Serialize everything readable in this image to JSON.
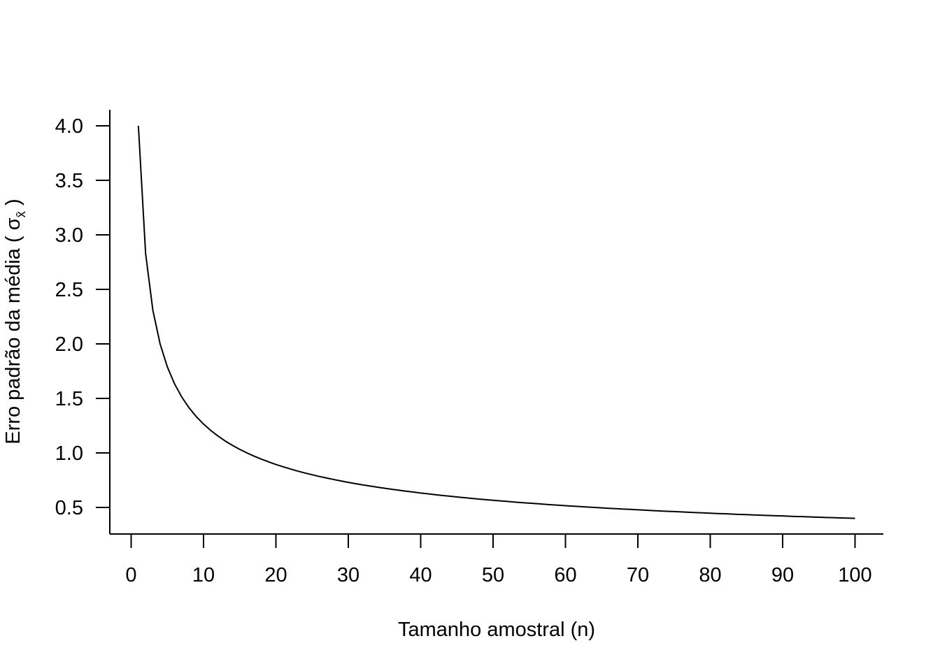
{
  "chart_data": {
    "type": "line",
    "title": "",
    "xlabel": "Tamanho amostral (n)",
    "ylabel": {
      "prefix": "Erro padrão da média ( σ",
      "subscript": "x̄",
      "suffix": " )"
    },
    "xlim": [
      1,
      100
    ],
    "ylim": [
      0.4,
      4.0
    ],
    "x_ticks": [
      0,
      10,
      20,
      30,
      40,
      50,
      60,
      70,
      80,
      90,
      100
    ],
    "x_tick_labels": [
      "0",
      "10",
      "20",
      "30",
      "40",
      "50",
      "60",
      "70",
      "80",
      "90",
      "100"
    ],
    "y_ticks": [
      0.5,
      1.0,
      1.5,
      2.0,
      2.5,
      3.0,
      3.5,
      4.0
    ],
    "y_tick_labels": [
      "0.5",
      "1.0",
      "1.5",
      "2.0",
      "2.5",
      "3.0",
      "3.5",
      "4.0"
    ],
    "grid": false,
    "legend": "none",
    "series": [
      {
        "color": "#000000",
        "x": [
          1,
          2,
          3,
          4,
          5,
          6,
          7,
          8,
          9,
          10,
          11,
          12,
          13,
          14,
          15,
          16,
          17,
          18,
          19,
          20,
          21,
          22,
          23,
          24,
          25,
          26,
          27,
          28,
          29,
          30,
          31,
          32,
          33,
          34,
          35,
          36,
          37,
          38,
          39,
          40,
          41,
          42,
          43,
          44,
          45,
          46,
          47,
          48,
          49,
          50,
          51,
          52,
          53,
          54,
          55,
          56,
          57,
          58,
          59,
          60,
          61,
          62,
          63,
          64,
          65,
          66,
          67,
          68,
          69,
          70,
          71,
          72,
          73,
          74,
          75,
          76,
          77,
          78,
          79,
          80,
          81,
          82,
          83,
          84,
          85,
          86,
          87,
          88,
          89,
          90,
          91,
          92,
          93,
          94,
          95,
          96,
          97,
          98,
          99,
          100
        ],
        "y": [
          4.0,
          2.828,
          2.309,
          2.0,
          1.789,
          1.633,
          1.512,
          1.414,
          1.333,
          1.265,
          1.206,
          1.155,
          1.109,
          1.069,
          1.033,
          1.0,
          0.97,
          0.943,
          0.918,
          0.894,
          0.873,
          0.853,
          0.834,
          0.816,
          0.8,
          0.784,
          0.77,
          0.756,
          0.743,
          0.73,
          0.718,
          0.707,
          0.696,
          0.686,
          0.676,
          0.667,
          0.658,
          0.649,
          0.641,
          0.632,
          0.625,
          0.617,
          0.61,
          0.603,
          0.596,
          0.59,
          0.583,
          0.577,
          0.571,
          0.566,
          0.56,
          0.555,
          0.549,
          0.544,
          0.539,
          0.535,
          0.53,
          0.525,
          0.521,
          0.516,
          0.512,
          0.508,
          0.504,
          0.5,
          0.496,
          0.492,
          0.489,
          0.485,
          0.482,
          0.478,
          0.475,
          0.471,
          0.468,
          0.465,
          0.462,
          0.459,
          0.456,
          0.453,
          0.45,
          0.447,
          0.444,
          0.442,
          0.439,
          0.436,
          0.434,
          0.431,
          0.429,
          0.426,
          0.424,
          0.422,
          0.419,
          0.417,
          0.415,
          0.413,
          0.41,
          0.408,
          0.406,
          0.404,
          0.402,
          0.4
        ]
      }
    ]
  }
}
